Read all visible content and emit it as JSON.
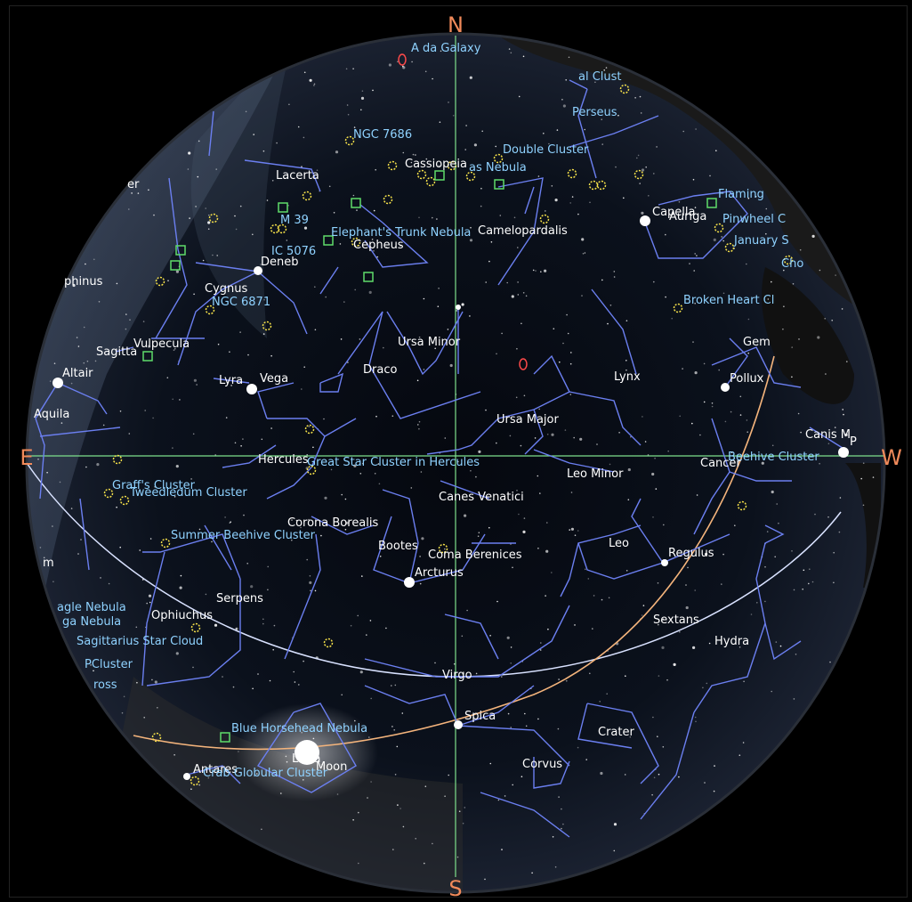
{
  "cardinal": {
    "n": "N",
    "s": "S",
    "e": "E",
    "w": "W"
  },
  "colors": {
    "sky": "#0a0f18",
    "milky_way": "#4a5a70",
    "constellation_line": "#6b7ff0",
    "grid_line": "#7ee08c",
    "ecliptic": "#f4b47c",
    "horizon_line": "#d9e2ff",
    "cardinal": "#f08a5a",
    "cluster_marker": "#f7e24a",
    "nebula_marker": "#5fdc6a",
    "galaxy_marker": "#ff4a4a",
    "label_white": "#ffffff",
    "label_blue": "#8fd2ff"
  },
  "labels": {
    "andromeda": "A   da Galaxy",
    "double_cluster_a": "al Clust",
    "perseus": "Perseus",
    "ngc7686": "NGC 7686",
    "cassiopeia": "Cassiopeia",
    "owl_nebula": "as Nebula",
    "double_cluster": "Double Cluster",
    "lacerta": "Lacerta",
    "er": "er",
    "m39": "M 39",
    "ic5076": "IC 5076",
    "elephants_trunk": "Elephant's Trunk Nebula",
    "camelopardalis": "Camelopardalis",
    "cepheus": "Cepheus",
    "flaming": "Flaming",
    "capella": "Capella",
    "auriga": "Auriga",
    "pinwheel": "Pinwheel C",
    "january": "January S",
    "cho": "Cho",
    "deneb": "Deneb",
    "cygnus": "Cygnus",
    "ngc6871": "NGC 6871",
    "ophinus": "phinus",
    "broken_heart": "Broken Heart Cl",
    "ursa_minor": "Ursa Minor",
    "gem": "Gem",
    "vulpecula": "Vulpecula",
    "sagitta": "Sagitta",
    "draco": "Draco",
    "altair": "Altair",
    "lyra": "Lyra",
    "vega": "Vega",
    "lynx": "Lynx",
    "pollux": "Pollux",
    "aquila": "Aquila",
    "ursa_major": "Ursa Major",
    "canis_minor": "Canis M",
    "procyon": "P",
    "hercules": "Hercules",
    "great_star_cluster": "Great Star Cluster in Hercules",
    "leo_minor": "Leo Minor",
    "cancer": "Cancer",
    "beehive": "Beehive Cluster",
    "graffs": "Graff's Cluster",
    "tweedledum": "Tweedledum Cluster",
    "canes_venatici": "Canes Venatici",
    "corona_borealis": "Corona Borealis",
    "summer_beehive": "Summer Beehive Cluster",
    "bootes": "Bootes",
    "leo": "Leo",
    "coma_berenices": "Coma Berenices",
    "regulus": "Regulus",
    "arcturus": "Arcturus",
    "serpens": "Serpens",
    "m": "m",
    "eagle_nebula": "agle Nebula",
    "ga_nebula": "ga Nebula",
    "ophiuchus": "Ophiuchus",
    "sextans": "Sextans",
    "hydra": "Hydra",
    "sagittarius_star_cloud": "Sagittarius Star Cloud",
    "pcluster": "PCluster",
    "ross": "ross",
    "virgo": "Virgo",
    "spica": "Spica",
    "crater": "Crater",
    "blue_horsehead": "Blue Horsehead Nebula",
    "libra": "Libra",
    "moon": "Moon",
    "corvus": "Corvus",
    "antares": "Antares",
    "crab_globular": "Crab Globular Cluster"
  }
}
